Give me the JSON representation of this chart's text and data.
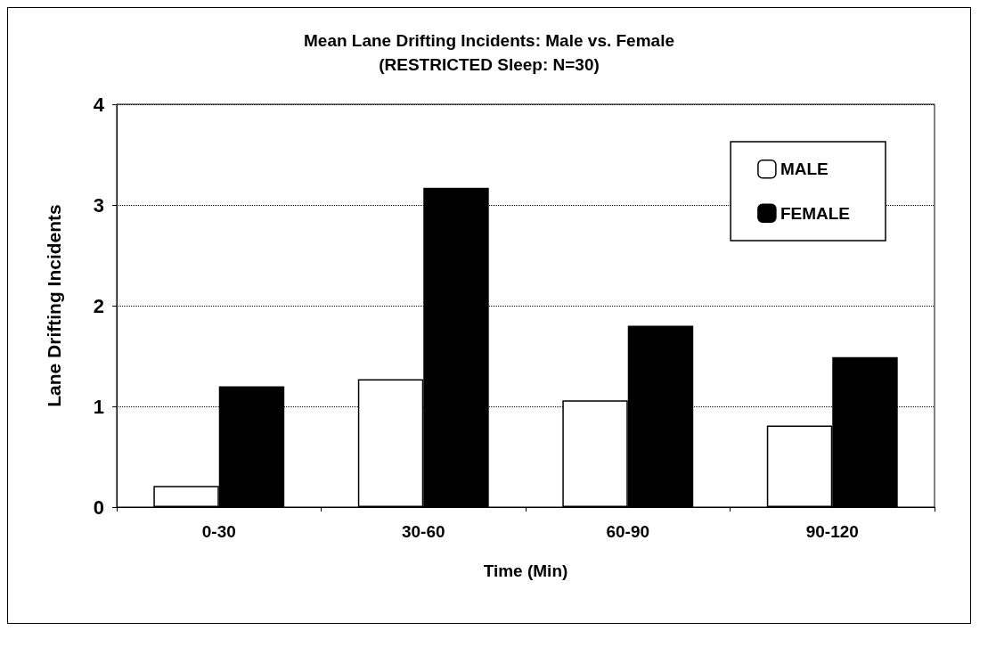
{
  "chart_data": {
    "type": "bar",
    "title": "Mean Lane Drifting Incidents: Male vs. Female",
    "subtitle": "(RESTRICTED Sleep: N=30)",
    "xlabel": "Time (Min)",
    "ylabel": "Lane Drifting Incidents",
    "categories": [
      "0-30",
      "30-60",
      "60-90",
      "90-120"
    ],
    "series": [
      {
        "name": "MALE",
        "color": "#ffffff",
        "values": [
          0.21,
          1.27,
          1.06,
          0.81
        ]
      },
      {
        "name": "FEMALE",
        "color": "#000000",
        "values": [
          1.2,
          3.17,
          1.8,
          1.49
        ]
      }
    ],
    "ylim": [
      0,
      4
    ],
    "yticks": [
      0,
      1,
      2,
      3,
      4
    ],
    "grid": "y",
    "legend": "top right"
  }
}
